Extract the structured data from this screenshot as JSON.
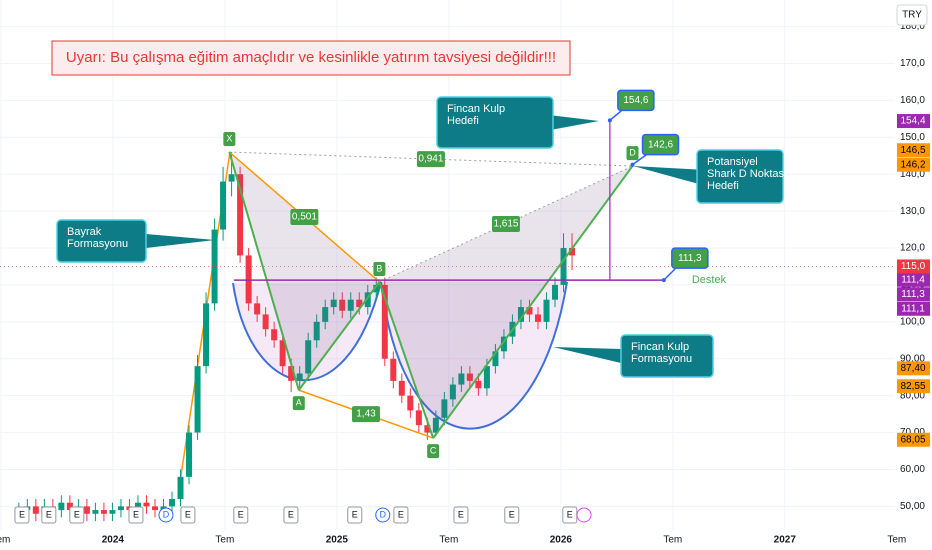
{
  "chart_data": {
    "type": "candlestick",
    "currency": "TRY",
    "warning": "Uyarı: Bu çalışma eğitim amaçlıdır ve kesinlikle yatırım tavsiyesi değildir!!!",
    "up_color": "#089981",
    "down_color": "#f23645",
    "x": [
      2023.58,
      2023.618,
      2023.656,
      2023.694,
      2023.732,
      2023.77,
      2023.808,
      2023.846,
      2023.884,
      2023.922,
      2023.96,
      2023.998,
      2024.036,
      2024.074,
      2024.112,
      2024.15,
      2024.188,
      2024.226,
      2024.264,
      2024.302,
      2024.34,
      2024.378,
      2024.416,
      2024.454,
      2024.492,
      2024.53,
      2024.568,
      2024.606,
      2024.644,
      2024.682,
      2024.72,
      2024.758,
      2024.796,
      2024.834,
      2024.872,
      2024.91,
      2024.948,
      2024.986,
      2025.024,
      2025.062,
      2025.1,
      2025.138,
      2025.176,
      2025.214,
      2025.252,
      2025.29,
      2025.328,
      2025.366,
      2025.404,
      2025.442,
      2025.48,
      2025.518,
      2025.556,
      2025.594,
      2025.632,
      2025.67,
      2025.708,
      2025.746,
      2025.784,
      2025.822,
      2025.86,
      2025.898,
      2025.936,
      2025.974,
      2026.012,
      2026.05
    ],
    "open": [
      48,
      49,
      50,
      48,
      50,
      49,
      51,
      49,
      50,
      48,
      49,
      48,
      49,
      50,
      49,
      51,
      50,
      49,
      50,
      52,
      58,
      70,
      88,
      105,
      125,
      138,
      140,
      118,
      105,
      102,
      98,
      95,
      88,
      84,
      86,
      95,
      100,
      104,
      106,
      103,
      106,
      104,
      108,
      110,
      90,
      84,
      80,
      76,
      72,
      70,
      74,
      79,
      83,
      86,
      84,
      82,
      88,
      92,
      96,
      100,
      104,
      102,
      100,
      106,
      110,
      120
    ],
    "high": [
      51,
      52,
      52,
      52,
      52,
      53,
      53,
      52,
      52,
      51,
      51,
      51,
      52,
      52,
      53,
      53,
      52,
      52,
      54,
      60,
      72,
      91,
      108,
      128,
      142,
      146,
      142,
      120,
      107,
      104,
      100,
      97,
      90,
      88,
      97,
      102,
      106,
      108,
      108,
      108,
      108,
      110,
      112,
      112,
      92,
      86,
      82,
      78,
      74,
      76,
      81,
      85,
      88,
      88,
      86,
      90,
      94,
      98,
      102,
      106,
      106,
      104,
      108,
      112,
      124,
      124
    ],
    "low": [
      46,
      47,
      46,
      46,
      47,
      47,
      47,
      47,
      46,
      46,
      46,
      46,
      47,
      47,
      47,
      48,
      47,
      47,
      48,
      50,
      56,
      68,
      86,
      103,
      122,
      134,
      116,
      103,
      100,
      96,
      93,
      86,
      81,
      82,
      84,
      93,
      98,
      102,
      101,
      101,
      102,
      102,
      106,
      88,
      82,
      78,
      74,
      70,
      68,
      69,
      72,
      77,
      81,
      82,
      80,
      80,
      86,
      90,
      94,
      98,
      100,
      98,
      98,
      104,
      108,
      114
    ],
    "close": [
      49,
      50,
      48,
      50,
      49,
      51,
      49,
      50,
      48,
      49,
      48,
      49,
      50,
      49,
      51,
      50,
      49,
      50,
      52,
      58,
      70,
      88,
      105,
      125,
      138,
      140,
      118,
      105,
      102,
      98,
      95,
      88,
      84,
      86,
      95,
      100,
      104,
      106,
      103,
      106,
      104,
      108,
      110,
      90,
      84,
      80,
      76,
      72,
      70,
      74,
      79,
      83,
      86,
      84,
      82,
      88,
      92,
      96,
      100,
      104,
      102,
      100,
      106,
      110,
      120,
      118
    ],
    "xlim": [
      2023.496,
      2027.492
    ],
    "xticks": [
      {
        "value": 2023.5,
        "label": "Tem"
      },
      2024,
      {
        "value": 2024.5,
        "label": "Tem"
      },
      2025,
      {
        "value": 2025.5,
        "label": "Tem"
      },
      2026,
      {
        "value": 2026.5,
        "label": "Tem"
      },
      2027,
      {
        "value": 2027.5,
        "label": "Tem"
      }
    ],
    "ylim": [
      43.6,
      187.2
    ],
    "yticks": [
      {
        "value": 50,
        "label": "50,00"
      },
      {
        "value": 60,
        "label": "60,00"
      },
      {
        "value": 70,
        "label": "70,00"
      },
      {
        "value": 80,
        "label": "80,00"
      },
      {
        "value": 90,
        "label": "90,00"
      },
      {
        "value": 100,
        "label": "100,0"
      },
      {
        "value": 110,
        "label": "110,0"
      },
      {
        "value": 120,
        "label": "120,0"
      },
      {
        "value": 130,
        "label": "130,0"
      },
      {
        "value": 140,
        "label": "140,0"
      },
      {
        "value": 150,
        "label": "150,0"
      },
      {
        "value": 160,
        "label": "160,0"
      },
      {
        "value": 170,
        "label": "170,0"
      },
      {
        "value": 180,
        "label": "180,0"
      }
    ],
    "grid": true,
    "pattern": {
      "points": [
        {
          "label": "X",
          "x": 2024.52,
          "y": 146
        },
        {
          "label": "A",
          "x": 2024.83,
          "y": 81.5
        },
        {
          "label": "B",
          "x": 2025.19,
          "y": 110.8
        },
        {
          "label": "C",
          "x": 2025.43,
          "y": 68.5
        },
        {
          "label": "D",
          "x": 2026.32,
          "y": 142.2
        }
      ],
      "ratios": [
        {
          "label": "0,501",
          "from": 0,
          "to": 2,
          "color": "#ff9800"
        },
        {
          "label": "1,43",
          "from": 1,
          "to": 3,
          "color": "#ff9800"
        },
        {
          "label": "1,615",
          "from": 2,
          "to": 4,
          "color": "#9e9e9e"
        },
        {
          "label": "0,941",
          "from": 0,
          "to": 4,
          "color": "#9e9e9e"
        }
      ]
    },
    "support": {
      "label": "Destek",
      "value": 111.3,
      "x": [
        2024.54,
        2026.46
      ]
    },
    "targets": [
      {
        "value": 154.6,
        "label": "154,6",
        "x": 2026.219
      },
      {
        "value": 142.6,
        "label": "142,6",
        "x": 2026.32
      },
      {
        "value": 111.3,
        "label": "111,3",
        "x": 2026.46
      }
    ],
    "callouts": [
      [
        "Fincan Kulp",
        "Hedefi"
      ],
      [
        "Potansiyel",
        "Shark D Noktası",
        "Hedefi"
      ],
      [
        "Bayrak",
        "Formasyonu"
      ],
      [
        "Fincan Kulp",
        "Formasyonu"
      ]
    ],
    "last_price": {
      "value": 115,
      "label": "115,0",
      "color": "#f23645"
    },
    "axis_tags": [
      {
        "value": 154.4,
        "label": "154,4",
        "color": "#9c27b0"
      },
      {
        "value": 146.5,
        "label": "146,5",
        "color": "#ff9800"
      },
      {
        "value": 146.2,
        "label": "146,2",
        "color": "#ff9800"
      },
      {
        "value": 111.4,
        "label": "111,4",
        "color": "#9c27b0"
      },
      {
        "value": 111.3,
        "label": "111,3",
        "color": "#9c27b0"
      },
      {
        "value": 111.1,
        "label": "111,1",
        "color": "#9c27b0"
      },
      {
        "value": 87.4,
        "label": "87,40",
        "color": "#ff9800"
      },
      {
        "value": 82.55,
        "label": "82,55",
        "color": "#ff9800"
      },
      {
        "value": 68.05,
        "label": "68,05",
        "color": "#ff9800"
      }
    ],
    "events": [
      {
        "label": "E",
        "x": 2023.594
      },
      {
        "label": "E",
        "x": 2023.714
      },
      {
        "label": "E",
        "x": 2023.839
      },
      {
        "label": "E",
        "x": 2024.103
      },
      {
        "label": "D",
        "x": 2024.237
      },
      {
        "label": "E",
        "x": 2024.335
      },
      {
        "label": "E",
        "x": 2024.571
      },
      {
        "label": "E",
        "x": 2024.795
      },
      {
        "label": "E",
        "x": 2025.08
      },
      {
        "label": "D",
        "x": 2025.205
      },
      {
        "label": "E",
        "x": 2025.286
      },
      {
        "label": "E",
        "x": 2025.554
      },
      {
        "label": "E",
        "x": 2025.781
      },
      {
        "label": "E",
        "x": 2026.04
      }
    ]
  }
}
